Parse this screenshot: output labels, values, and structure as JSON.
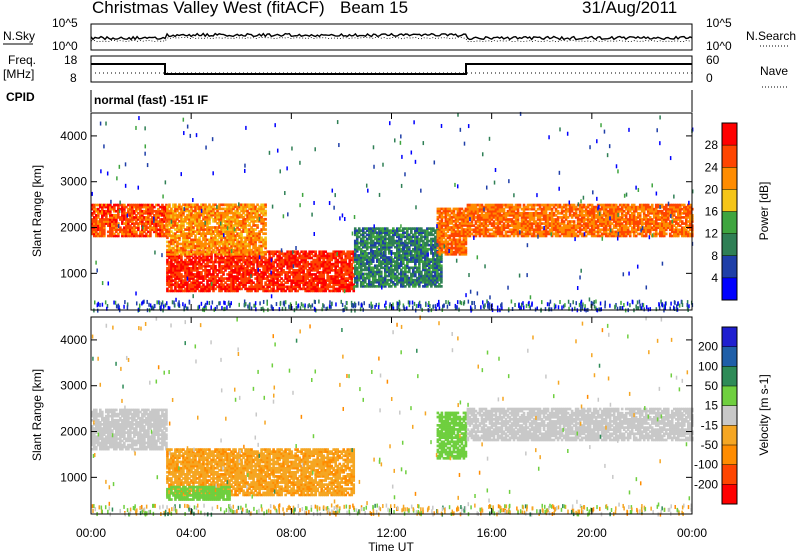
{
  "header": {
    "title": "Christmas Valley West (fitACF)",
    "beam": "Beam 15",
    "date": "31/Aug/2011"
  },
  "info_panel": {
    "nsky_label": "N.Sky",
    "nsearch_label": "N.Search",
    "freq_label": "Freq.",
    "freq_unit": "[MHz]",
    "nave_label": "Nave",
    "cpid_label": "CPID",
    "cpid_text": "normal (fast) -151 IF",
    "noise_ticks": [
      "10^5",
      "10^0"
    ],
    "freq_ticks": [
      "18",
      "8"
    ],
    "nave_ticks": [
      "60",
      "0"
    ]
  },
  "colors": {
    "power": [
      "#0000ff",
      "#1f3fa8",
      "#2f7f55",
      "#3fa53f",
      "#f5c518",
      "#ff8c00",
      "#ff4500",
      "#ff0000"
    ],
    "velocity": [
      "#ff0000",
      "#ff4500",
      "#ff8c00",
      "#f5a623",
      "#c8c8c8",
      "#6fcf3f",
      "#2e8b57",
      "#1f5fa8",
      "#1f1fd0"
    ]
  },
  "chart_data": [
    {
      "type": "heatmap",
      "title": "Power",
      "xlabel": "Time UT",
      "ylabel": "Slant Range [km]",
      "colorbar_label": "Power [dB]",
      "colorbar_ticks": [
        "4",
        "8",
        "12",
        "16",
        "20",
        "24",
        "28"
      ],
      "colorbar_range": [
        0,
        32
      ],
      "xlim": [
        "00:00",
        "24:00"
      ],
      "ylim": [
        200,
        4500
      ],
      "x_ticks": [
        "00:00",
        "04:00",
        "08:00",
        "12:00",
        "16:00",
        "20:00",
        "00:00"
      ],
      "y_ticks": [
        1000,
        2000,
        3000,
        4000
      ],
      "features": [
        {
          "name": "evening echo band",
          "t": [
            0.0,
            3.0
          ],
          "range_km": [
            1800,
            2500
          ],
          "power_db": 26
        },
        {
          "name": "daytime near-range echoes",
          "t": [
            3.0,
            10.5
          ],
          "range_km": [
            600,
            1500
          ],
          "power_db": 28
        },
        {
          "name": "rising slant band",
          "t": [
            3.0,
            7.0
          ],
          "range_km": [
            1400,
            2500
          ],
          "power_db": 22
        },
        {
          "name": "midday scatter",
          "t": [
            10.5,
            14.0
          ],
          "range_km": [
            700,
            2000
          ],
          "power_db": 10
        },
        {
          "name": "afternoon sloping echo",
          "t": [
            13.8,
            15.0
          ],
          "range_km": [
            1400,
            2400
          ],
          "power_db": 24
        },
        {
          "name": "night echo band",
          "t": [
            15.0,
            24.0
          ],
          "range_km": [
            1800,
            2500
          ],
          "power_db": 24
        }
      ]
    },
    {
      "type": "heatmap",
      "title": "Velocity",
      "xlabel": "Time UT",
      "ylabel": "Slant Range [km]",
      "colorbar_label": "Velocity [m s-1]",
      "colorbar_ticks": [
        "200",
        "100",
        "50",
        "15",
        "-15",
        "-50",
        "-100",
        "-200"
      ],
      "colorbar_range": [
        -250,
        250
      ],
      "xlim": [
        "00:00",
        "24:00"
      ],
      "ylim": [
        200,
        4500
      ],
      "x_ticks": [
        "00:00",
        "04:00",
        "08:00",
        "12:00",
        "16:00",
        "20:00",
        "00:00"
      ],
      "y_ticks": [
        1000,
        2000,
        3000,
        4000
      ],
      "features": [
        {
          "name": "evening ground scatter",
          "t": [
            0.0,
            3.0
          ],
          "range_km": [
            1600,
            2500
          ],
          "velocity": 0
        },
        {
          "name": "daytime negative flow",
          "t": [
            3.0,
            10.5
          ],
          "range_km": [
            600,
            1600
          ],
          "velocity": -45
        },
        {
          "name": "near-range positive patch",
          "t": [
            3.0,
            5.5
          ],
          "range_km": [
            500,
            800
          ],
          "velocity": 30
        },
        {
          "name": "afternoon sloping echo",
          "t": [
            13.8,
            15.0
          ],
          "range_km": [
            1400,
            2400
          ],
          "velocity": 25
        },
        {
          "name": "night ground scatter",
          "t": [
            15.0,
            24.0
          ],
          "range_km": [
            1800,
            2500
          ],
          "velocity": 0
        }
      ]
    }
  ]
}
